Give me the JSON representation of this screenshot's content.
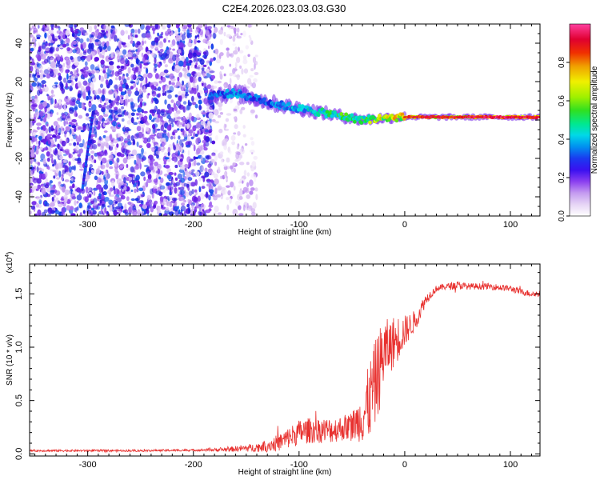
{
  "figure_title": "C2E4.2026.023.03.03.G30",
  "chart_data": [
    {
      "type": "heatmap",
      "name": "spectrogram",
      "xlabel": "Height of straight line (km)",
      "ylabel": "Frequency (Hz)",
      "xlim": [
        -355,
        128
      ],
      "ylim": [
        -50,
        50
      ],
      "xticks": [
        -300,
        -200,
        -100,
        0,
        100
      ],
      "yticks": [
        -40,
        -20,
        0,
        20,
        40
      ],
      "xtick_labels": [
        "-300",
        "-200",
        "-100",
        "0",
        "100"
      ],
      "ytick_labels": [
        "-40",
        "-20",
        "0",
        "20",
        "40"
      ],
      "colorbar": {
        "label": "Normalized spectral amplitude",
        "range": [
          0,
          1
        ],
        "ticks": [
          0.0,
          0.2,
          0.4,
          0.6,
          0.8
        ],
        "tick_labels": [
          "0.0",
          "0.2",
          "0.4",
          "0.6",
          "0.8"
        ],
        "colormap": [
          "#ffffff",
          "#e6d5f5",
          "#c49af0",
          "#8a3ff0",
          "#5a10e0",
          "#1a1ae0",
          "#1a5af0",
          "#00a0f0",
          "#00e0e0",
          "#00e090",
          "#20e020",
          "#a0f000",
          "#f0f000",
          "#f0a000",
          "#f04000",
          "#e00020",
          "#f01070",
          "#ff40a0"
        ]
      },
      "features": [
        {
          "label": "noise floor",
          "x_range": [
            -355,
            -180
          ],
          "freq_range": [
            -50,
            50
          ],
          "amplitude": 0.2
        },
        {
          "label": "sparse noise",
          "x_range": [
            -180,
            -140
          ],
          "freq_range": [
            -50,
            50
          ],
          "amplitude": 0.08
        },
        {
          "label": "diagonal streak",
          "x_range": [
            -305,
            -295
          ],
          "freq_range": [
            -36,
            4
          ],
          "amplitude": 0.25
        },
        {
          "label": "signal band",
          "x": [
            -185,
            -160,
            -140,
            -120,
            -100,
            -80,
            -60,
            -40,
            -20,
            0,
            20,
            50,
            80,
            100,
            128
          ],
          "freq": [
            13,
            14,
            11,
            8,
            6,
            4,
            2,
            0,
            1,
            1.5,
            1.5,
            1.5,
            1.5,
            1.5,
            1.5
          ],
          "amplitude": [
            0.35,
            0.4,
            0.35,
            0.4,
            0.45,
            0.5,
            0.55,
            0.55,
            0.7,
            0.75,
            0.8,
            0.8,
            0.85,
            0.85,
            0.8
          ]
        }
      ]
    },
    {
      "type": "line",
      "name": "snr",
      "xlabel": "Height of straight line (km)",
      "ylabel": "SNR (10 * v/v)",
      "scale_label": "(x10^4)",
      "scale_base": "(x10",
      "scale_exp": "4",
      "scale_close": ")",
      "xlim": [
        -355,
        128
      ],
      "ylim": [
        -0.02,
        1.78
      ],
      "xticks": [
        -300,
        -200,
        -100,
        0,
        100
      ],
      "yticks": [
        0.0,
        0.5,
        1.0,
        1.5
      ],
      "xtick_labels": [
        "-300",
        "-200",
        "-100",
        "0",
        "100"
      ],
      "ytick_labels": [
        "0.0",
        "0.5",
        "1.0",
        "1.5"
      ],
      "line_color": "#e8312f",
      "series": [
        {
          "name": "SNR",
          "x": [
            -355,
            -300,
            -250,
            -200,
            -170,
            -140,
            -120,
            -110,
            -100,
            -90,
            -80,
            -70,
            -60,
            -50,
            -45,
            -40,
            -35,
            -30,
            -25,
            -20,
            -15,
            -10,
            -5,
            0,
            5,
            10,
            15,
            20,
            25,
            30,
            40,
            50,
            60,
            80,
            100,
            110,
            120,
            128
          ],
          "y": [
            0.03,
            0.03,
            0.03,
            0.035,
            0.04,
            0.06,
            0.1,
            0.15,
            0.2,
            0.22,
            0.22,
            0.22,
            0.24,
            0.26,
            0.3,
            0.35,
            0.45,
            0.6,
            0.75,
            0.95,
            1.0,
            1.05,
            1.1,
            1.15,
            1.2,
            1.25,
            1.35,
            1.45,
            1.5,
            1.55,
            1.57,
            1.58,
            1.57,
            1.57,
            1.55,
            1.52,
            1.5,
            1.5
          ],
          "noise_amplitude": [
            0.01,
            0.01,
            0.01,
            0.01,
            0.02,
            0.04,
            0.08,
            0.1,
            0.12,
            0.12,
            0.12,
            0.12,
            0.12,
            0.14,
            0.18,
            0.25,
            0.35,
            0.4,
            0.4,
            0.35,
            0.25,
            0.25,
            0.2,
            0.15,
            0.12,
            0.1,
            0.08,
            0.05,
            0.04,
            0.03,
            0.03,
            0.04,
            0.03,
            0.03,
            0.03,
            0.03,
            0.03,
            0.03
          ]
        }
      ]
    }
  ]
}
